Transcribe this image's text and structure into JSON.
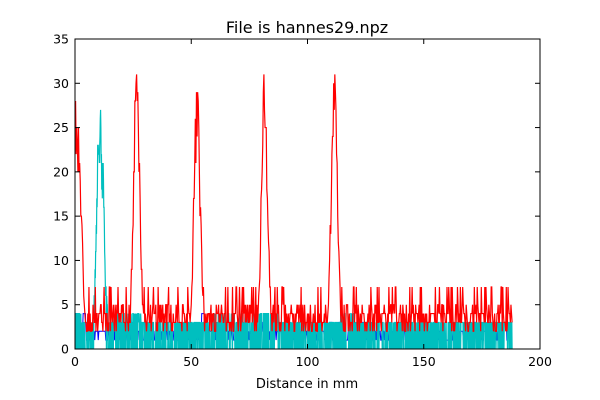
{
  "chart_data": {
    "type": "line",
    "title": "File is hannes29.npz",
    "xlabel": "Distance in mm",
    "ylabel": "",
    "xlim": [
      0,
      200
    ],
    "ylim": [
      0,
      35
    ],
    "xticks": [
      "0",
      "50",
      "100",
      "150",
      "200"
    ],
    "yticks": [
      "0",
      "5",
      "10",
      "15",
      "20",
      "25",
      "30",
      "35"
    ],
    "grid": false,
    "series": [
      {
        "color": "#0000ff",
        "style": "dense_step",
        "baseline": [
          [
            0,
            1.6
          ],
          [
            30,
            1.6
          ],
          [
            60,
            1.8
          ],
          [
            90,
            1.6
          ],
          [
            120,
            1.6
          ],
          [
            160,
            1.6
          ],
          [
            188,
            1.6
          ]
        ],
        "spikes": [
          [
            0.5,
            4
          ],
          [
            4,
            4
          ],
          [
            11,
            2
          ],
          [
            12,
            2
          ],
          [
            25,
            3
          ],
          [
            44,
            1
          ],
          [
            45,
            1
          ],
          [
            48,
            3
          ],
          [
            55,
            4
          ],
          [
            80,
            3
          ],
          [
            82,
            4
          ],
          [
            110,
            3
          ],
          [
            114,
            3
          ],
          [
            124,
            3
          ],
          [
            140,
            2
          ],
          [
            159,
            1
          ],
          [
            160,
            1
          ],
          [
            172,
            3
          ],
          [
            185,
            3
          ]
        ]
      },
      {
        "color": "#00bfbf",
        "style": "dense_step",
        "baseline": [
          [
            0,
            0
          ],
          [
            188,
            0
          ]
        ],
        "fill_to": 3,
        "peaks": [
          [
            0,
            4
          ],
          [
            2,
            4
          ],
          [
            3,
            3
          ],
          [
            8,
            3
          ],
          [
            9,
            12
          ],
          [
            10,
            27
          ],
          [
            10.5,
            24
          ],
          [
            11,
            26
          ],
          [
            11.5,
            20
          ],
          [
            12,
            22
          ],
          [
            12.5,
            16
          ],
          [
            13,
            8
          ],
          [
            14,
            4
          ],
          [
            15,
            3
          ],
          [
            27,
            4
          ],
          [
            30,
            3
          ],
          [
            53,
            3
          ],
          [
            56,
            3
          ],
          [
            83,
            4
          ],
          [
            88,
            3
          ],
          [
            113,
            3
          ],
          [
            116,
            4
          ],
          [
            120,
            3
          ],
          [
            150,
            3
          ],
          [
            188,
            3
          ]
        ]
      },
      {
        "color": "#ff0000",
        "style": "noisy_line",
        "noise_range": [
          2,
          7
        ],
        "peaks": [
          {
            "x": 0.5,
            "y": 28,
            "width": 1.5
          },
          {
            "x": 1.5,
            "y": 26,
            "width": 1.0
          },
          {
            "x": 2.5,
            "y": 15,
            "width": 1.0
          },
          {
            "x": 26.5,
            "y": 31,
            "width": 1.4
          },
          {
            "x": 52.5,
            "y": 29,
            "width": 1.4
          },
          {
            "x": 81.5,
            "y": 30,
            "width": 1.4
          },
          {
            "x": 111.5,
            "y": 31,
            "width": 1.4
          }
        ],
        "x_end": 188
      }
    ]
  }
}
